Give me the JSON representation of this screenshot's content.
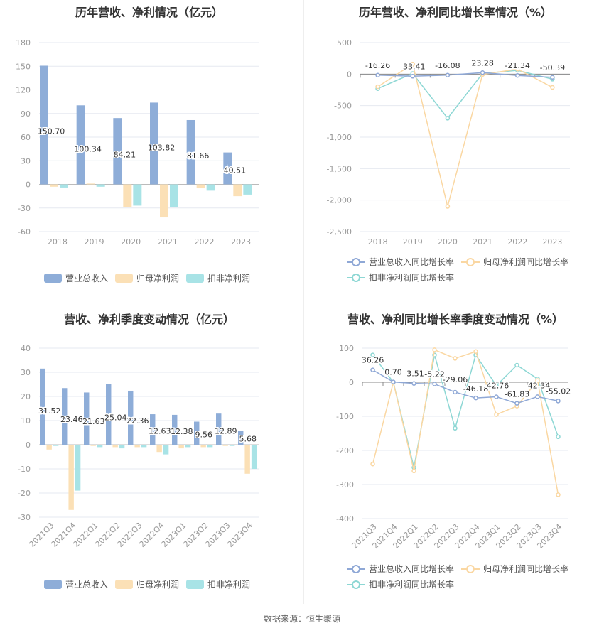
{
  "footer": "数据来源：恒生聚源",
  "colors": {
    "revenue": "#8eadd8",
    "net_profit": "#fbe0b6",
    "deducted_profit": "#a8e3e6",
    "rev_growth_line": "#8fa8d6",
    "np_growth_line": "#fad7a2",
    "dp_growth_line": "#8dd7d4"
  },
  "chart_data": [
    {
      "type": "bar",
      "title": "历年营收、净利情况（亿元）",
      "categories": [
        "2018",
        "2019",
        "2020",
        "2021",
        "2022",
        "2023"
      ],
      "yticks": [
        180,
        150,
        120,
        90,
        60,
        30,
        0,
        -30,
        -60
      ],
      "ylim": [
        -60,
        180
      ],
      "series": [
        {
          "name": "营业总收入",
          "values": [
            150.7,
            100.34,
            84.21,
            103.82,
            81.66,
            40.51
          ]
        },
        {
          "name": "归母净利润",
          "values": [
            -3,
            1,
            -29,
            -42,
            -5,
            -15
          ]
        },
        {
          "name": "扣非净利润",
          "values": [
            -4,
            -3,
            -27,
            -29,
            -8,
            -13
          ]
        }
      ],
      "data_labels": [
        "150.70",
        "100.34",
        "84.21",
        "103.82",
        "81.66",
        "40.51"
      ]
    },
    {
      "type": "line",
      "title": "历年营收、净利同比增长率情况（%）",
      "categories": [
        "2018",
        "2019",
        "2020",
        "2021",
        "2022",
        "2023"
      ],
      "yticks": [
        "500",
        "0",
        "-500",
        "-1,000",
        "-1,500",
        "-2,000",
        "-2,500"
      ],
      "ylim": [
        -2500,
        500
      ],
      "series": [
        {
          "name": "营业总收入同比增长率",
          "values": [
            -16.26,
            -33.41,
            -16.08,
            23.28,
            -21.34,
            -50.39
          ]
        },
        {
          "name": "归母净利润同比增长率",
          "values": [
            -200,
            160,
            -2100,
            -5,
            80,
            -210
          ]
        },
        {
          "name": "扣非净利润同比增长率",
          "values": [
            -230,
            10,
            -700,
            10,
            60,
            -80
          ]
        }
      ],
      "data_labels": [
        "-16.26",
        "-33.41",
        "-16.08",
        "23.28",
        "-21.34",
        "-50.39"
      ]
    },
    {
      "type": "bar",
      "title": "营收、净利季度变动情况（亿元）",
      "categories": [
        "2021Q3",
        "2021Q4",
        "2022Q1",
        "2022Q2",
        "2022Q3",
        "2022Q4",
        "2023Q1",
        "2023Q2",
        "2023Q3",
        "2023Q4"
      ],
      "yticks": [
        40,
        30,
        20,
        10,
        0,
        -10,
        -20,
        -30
      ],
      "ylim": [
        -30,
        40
      ],
      "series": [
        {
          "name": "营业总收入",
          "values": [
            31.52,
            23.46,
            21.63,
            25.04,
            22.36,
            12.63,
            12.38,
            9.56,
            12.89,
            5.68
          ]
        },
        {
          "name": "归母净利润",
          "values": [
            -2,
            -27,
            -0.5,
            -1,
            -1,
            -3,
            -1.5,
            -1,
            -0.5,
            -12
          ]
        },
        {
          "name": "扣非净利润",
          "values": [
            -0.5,
            -19,
            -1,
            -1.5,
            -1,
            -4,
            -1,
            -1,
            -0.5,
            -10
          ]
        }
      ],
      "data_labels": [
        "31.52",
        "23.46",
        "21.63",
        "25.04",
        "22.36",
        "12.63",
        "12.38",
        "9.56",
        "12.89",
        "5.68"
      ]
    },
    {
      "type": "line",
      "title": "营收、净利同比增长率季度变动情况（%）",
      "categories": [
        "2021Q3",
        "2021Q4",
        "2022Q1",
        "2022Q2",
        "2022Q3",
        "2022Q4",
        "2023Q1",
        "2023Q2",
        "2023Q3",
        "2023Q4"
      ],
      "yticks": [
        100,
        0,
        -100,
        -200,
        -300,
        -400
      ],
      "ylim": [
        -400,
        100
      ],
      "series": [
        {
          "name": "营业总收入同比增长率",
          "values": [
            36.26,
            0.7,
            -3.51,
            -5.22,
            -29.06,
            -46.18,
            -42.76,
            -61.83,
            -42.34,
            -55.02
          ]
        },
        {
          "name": "归母净利润同比增长率",
          "values": [
            -240,
            0,
            -260,
            95,
            70,
            90,
            -95,
            -70,
            5,
            -330
          ]
        },
        {
          "name": "扣非净利润同比增长率",
          "values": [
            80,
            0,
            -250,
            80,
            -135,
            80,
            -10,
            50,
            10,
            -160
          ]
        }
      ],
      "data_labels": [
        "36.26",
        "0.70",
        "-3.51",
        "-5.22",
        "-29.06",
        "-46.18",
        "-42.76",
        "-61.83",
        "-42.34",
        "-55.02"
      ]
    }
  ]
}
